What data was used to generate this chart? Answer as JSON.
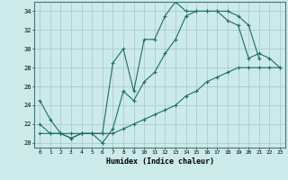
{
  "xlabel": "Humidex (Indice chaleur)",
  "background_color": "#cceaea",
  "grid_color": "#aacccc",
  "line_color": "#1a6e6a",
  "xlim": [
    -0.5,
    23.5
  ],
  "ylim": [
    19.5,
    35.0
  ],
  "yticks": [
    20,
    22,
    24,
    26,
    28,
    30,
    32,
    34
  ],
  "xticks": [
    0,
    1,
    2,
    3,
    4,
    5,
    6,
    7,
    8,
    9,
    10,
    11,
    12,
    13,
    14,
    15,
    16,
    17,
    18,
    19,
    20,
    21,
    22,
    23
  ],
  "series": [
    {
      "x": [
        0,
        1,
        2,
        3,
        4,
        5,
        6,
        7,
        8,
        9,
        10,
        11,
        12,
        13,
        14,
        15,
        16,
        17,
        18,
        19,
        20,
        21
      ],
      "y": [
        24.5,
        22.5,
        21.0,
        20.5,
        21.0,
        21.0,
        21.0,
        28.5,
        30.0,
        25.5,
        31.0,
        31.0,
        33.5,
        35.0,
        34.0,
        34.0,
        34.0,
        34.0,
        34.0,
        33.5,
        32.5,
        29.0
      ]
    },
    {
      "x": [
        0,
        1,
        2,
        3,
        4,
        5,
        6,
        7,
        8,
        9,
        10,
        11,
        12,
        13,
        14,
        15,
        16,
        17,
        18,
        19,
        20,
        21,
        22,
        23
      ],
      "y": [
        22.0,
        21.0,
        21.0,
        20.5,
        21.0,
        21.0,
        20.0,
        21.5,
        25.5,
        24.5,
        26.5,
        27.5,
        29.5,
        31.0,
        33.5,
        34.0,
        34.0,
        34.0,
        33.0,
        32.5,
        29.0,
        29.5,
        29.0,
        28.0
      ]
    },
    {
      "x": [
        0,
        1,
        2,
        3,
        4,
        5,
        6,
        7,
        8,
        9,
        10,
        11,
        12,
        13,
        14,
        15,
        16,
        17,
        18,
        19,
        20,
        21,
        22,
        23
      ],
      "y": [
        21.0,
        21.0,
        21.0,
        21.0,
        21.0,
        21.0,
        21.0,
        21.0,
        21.5,
        22.0,
        22.5,
        23.0,
        23.5,
        24.0,
        25.0,
        25.5,
        26.5,
        27.0,
        27.5,
        28.0,
        28.0,
        28.0,
        28.0,
        28.0
      ]
    }
  ]
}
